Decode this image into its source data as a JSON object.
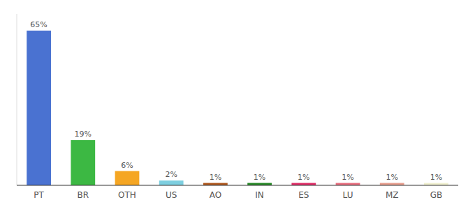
{
  "chart_data": {
    "type": "bar",
    "categories": [
      "PT",
      "BR",
      "OTH",
      "US",
      "AO",
      "IN",
      "ES",
      "LU",
      "MZ",
      "GB"
    ],
    "values": [
      65,
      19,
      6,
      2,
      1,
      1,
      1,
      1,
      1,
      1
    ],
    "value_labels": [
      "65%",
      "19%",
      "6%",
      "2%",
      "1%",
      "1%",
      "1%",
      "1%",
      "1%",
      "1%"
    ],
    "colors": [
      "#4a72d1",
      "#3cb843",
      "#f5a623",
      "#7ecfe0",
      "#b05a20",
      "#2a8a2a",
      "#e0306a",
      "#e87080",
      "#e8a090",
      "#f0f0d0"
    ],
    "ylim": [
      0,
      72
    ],
    "data_labels": true,
    "tick_labels": "x",
    "grid": false
  }
}
